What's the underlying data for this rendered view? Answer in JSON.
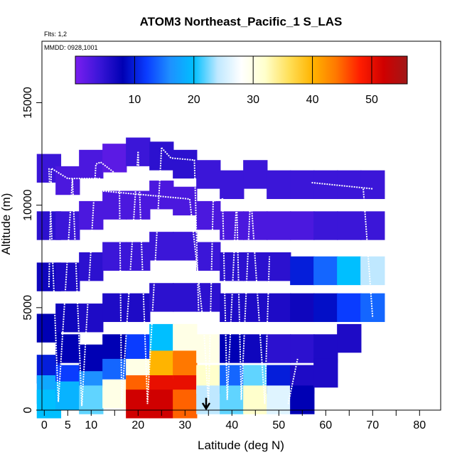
{
  "chart_data": {
    "type": "heatmap",
    "title": "ATOM3 Northeast_Pacific_1 S_LAS",
    "flights_note": "Flts: 1,2",
    "dates_note": "MMDD: 0928,1001",
    "xlabel": "Latitude (deg N)",
    "ylabel": "Altitude (m)",
    "xlim": [
      -0.5,
      84.5
    ],
    "ylim": [
      0,
      18000
    ],
    "x_ticks": [
      0,
      5,
      10,
      20,
      30,
      40,
      50,
      60,
      70,
      80
    ],
    "x_tick_labels": [
      "0",
      "5",
      "10",
      "20",
      "30",
      "40",
      "50",
      "60",
      "70",
      "80"
    ],
    "y_ticks": [
      0,
      5000,
      10000,
      15000
    ],
    "y_tick_labels": [
      "0",
      "5000",
      "10000",
      "15000"
    ],
    "colorbar": {
      "range": [
        0,
        56
      ],
      "ticks": [
        10,
        20,
        30,
        40,
        50
      ],
      "tick_labels": [
        "10",
        "20",
        "30",
        "40",
        "50"
      ],
      "colors": [
        "#7a1ef0",
        "#3b16d8",
        "#0000b4",
        "#0a3cff",
        "#1e90ff",
        "#00bfff",
        "#bfe8ff",
        "#ffffff",
        "#ffffcc",
        "#ffe05a",
        "#ffb400",
        "#ff7800",
        "#ff1e00",
        "#d00000",
        "#a01818"
      ]
    },
    "cells": [
      [
        1,
        11800,
        4
      ],
      [
        1,
        9000,
        5
      ],
      [
        1,
        6500,
        7
      ],
      [
        1,
        4000,
        8
      ],
      [
        1,
        2000,
        10
      ],
      [
        1,
        1000,
        18
      ],
      [
        1,
        300,
        20
      ],
      [
        5,
        11200,
        3
      ],
      [
        5,
        9000,
        4
      ],
      [
        5,
        6500,
        6
      ],
      [
        5,
        4500,
        7
      ],
      [
        5,
        3000,
        8
      ],
      [
        5,
        1500,
        12
      ],
      [
        5,
        700,
        19
      ],
      [
        10,
        12000,
        3
      ],
      [
        10,
        9500,
        3
      ],
      [
        10,
        7000,
        5
      ],
      [
        10,
        4500,
        6
      ],
      [
        10,
        2500,
        8
      ],
      [
        10,
        1200,
        16
      ],
      [
        10,
        500,
        22
      ],
      [
        15,
        12300,
        2
      ],
      [
        15,
        10000,
        3
      ],
      [
        15,
        7500,
        4
      ],
      [
        15,
        5000,
        6
      ],
      [
        15,
        3000,
        8
      ],
      [
        15,
        1800,
        14
      ],
      [
        15,
        800,
        30
      ],
      [
        20,
        12600,
        4
      ],
      [
        20,
        10000,
        3
      ],
      [
        20,
        7500,
        4
      ],
      [
        20,
        5000,
        6
      ],
      [
        20,
        3000,
        12
      ],
      [
        20,
        1800,
        30
      ],
      [
        20,
        1000,
        45
      ],
      [
        20,
        300,
        52
      ],
      [
        25,
        12400,
        5
      ],
      [
        25,
        10500,
        3
      ],
      [
        25,
        8000,
        4
      ],
      [
        25,
        5500,
        5
      ],
      [
        25,
        3500,
        20
      ],
      [
        25,
        2200,
        40
      ],
      [
        25,
        1000,
        50
      ],
      [
        25,
        300,
        52
      ],
      [
        30,
        12000,
        5
      ],
      [
        30,
        10200,
        3
      ],
      [
        30,
        8000,
        4
      ],
      [
        30,
        5500,
        5
      ],
      [
        30,
        3500,
        30
      ],
      [
        30,
        2200,
        44
      ],
      [
        30,
        1000,
        50
      ],
      [
        30,
        300,
        45
      ],
      [
        35,
        11500,
        4
      ],
      [
        35,
        9500,
        3
      ],
      [
        35,
        7500,
        4
      ],
      [
        35,
        5500,
        5
      ],
      [
        35,
        3000,
        30
      ],
      [
        35,
        1500,
        32
      ],
      [
        35,
        500,
        24
      ],
      [
        40,
        11000,
        4
      ],
      [
        40,
        9000,
        3
      ],
      [
        40,
        7000,
        5
      ],
      [
        40,
        5000,
        6
      ],
      [
        40,
        3000,
        8
      ],
      [
        40,
        1500,
        14
      ],
      [
        40,
        500,
        22
      ],
      [
        45,
        11500,
        4
      ],
      [
        45,
        9000,
        3
      ],
      [
        45,
        7000,
        5
      ],
      [
        45,
        5000,
        6
      ],
      [
        45,
        3000,
        7
      ],
      [
        45,
        1500,
        22
      ],
      [
        45,
        500,
        32
      ],
      [
        50,
        11000,
        4
      ],
      [
        50,
        9000,
        3
      ],
      [
        50,
        7000,
        5
      ],
      [
        50,
        5000,
        6
      ],
      [
        50,
        3000,
        5
      ],
      [
        50,
        1500,
        10
      ],
      [
        50,
        500,
        26
      ],
      [
        55,
        11000,
        4
      ],
      [
        55,
        9000,
        3
      ],
      [
        55,
        6800,
        10
      ],
      [
        55,
        5000,
        7
      ],
      [
        55,
        3000,
        5
      ],
      [
        55,
        1500,
        6
      ],
      [
        55,
        500,
        8
      ],
      [
        60,
        11000,
        4
      ],
      [
        60,
        9000,
        4
      ],
      [
        60,
        6800,
        14
      ],
      [
        60,
        5000,
        9
      ],
      [
        60,
        3000,
        6
      ],
      [
        60,
        1800,
        6
      ],
      [
        65,
        11000,
        4
      ],
      [
        65,
        9000,
        4
      ],
      [
        65,
        6800,
        20
      ],
      [
        65,
        5000,
        12
      ],
      [
        65,
        3500,
        6
      ],
      [
        70,
        11000,
        4
      ],
      [
        70,
        9000,
        4
      ],
      [
        70,
        6800,
        24
      ],
      [
        70,
        5000,
        14
      ]
    ],
    "arrow_marker": {
      "x": 34.5,
      "y_top": 600,
      "y_bottom": 0
    }
  }
}
